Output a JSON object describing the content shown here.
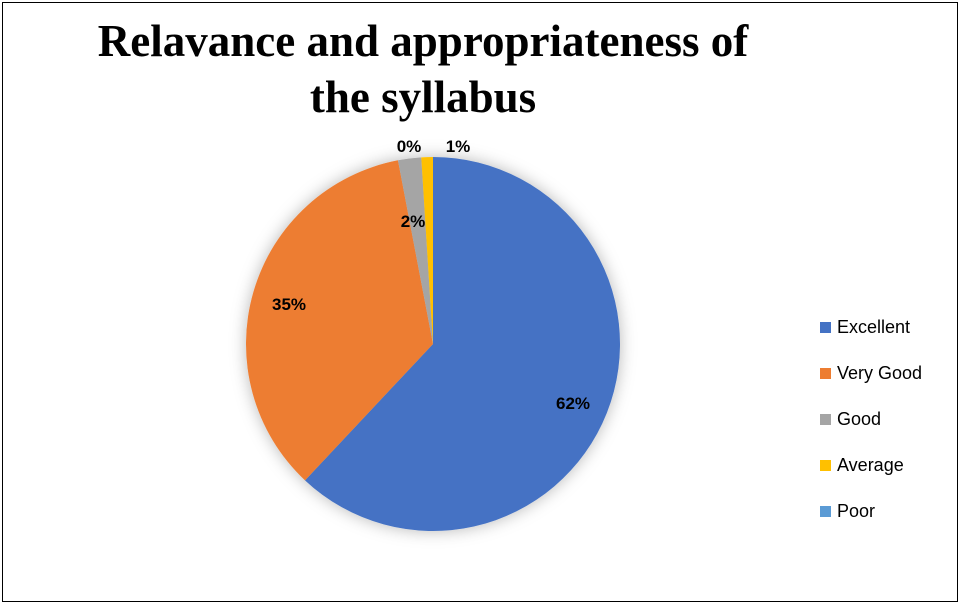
{
  "chart_data": {
    "type": "pie",
    "title": "Relavance and appropriateness of the syllabus",
    "categories": [
      "Excellent",
      "Very Good",
      "Good",
      "Average",
      "Poor"
    ],
    "values": [
      62,
      35,
      2,
      1,
      0
    ],
    "data_labels": [
      "62%",
      "35%",
      "2%",
      "1%",
      "0%"
    ],
    "colors": [
      "#4472C4",
      "#ED7D31",
      "#A5A5A5",
      "#FFC000",
      "#5B9BD5"
    ],
    "legend_position": "right"
  }
}
